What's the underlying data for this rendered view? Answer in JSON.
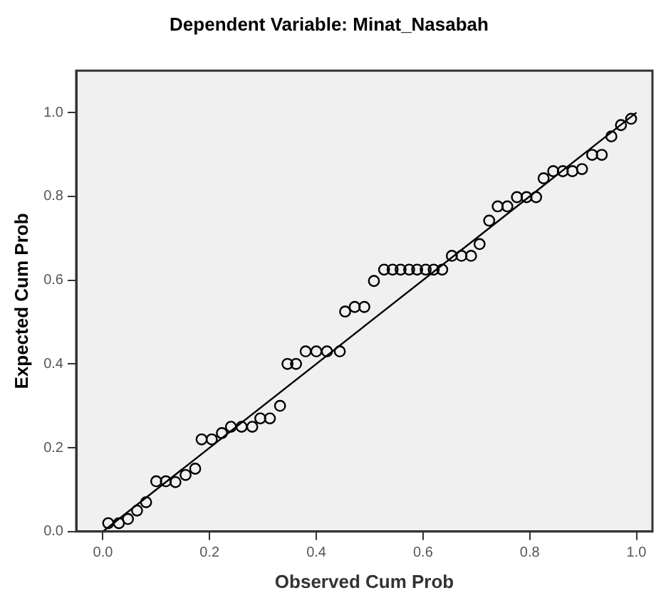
{
  "chart_data": {
    "type": "scatter",
    "title": "Dependent Variable: Minat_Nasabah",
    "xlabel": "Observed Cum Prob",
    "ylabel": "Expected Cum Prob",
    "xlim": [
      -0.05,
      1.03
    ],
    "ylim": [
      0,
      1.1
    ],
    "xticks": [
      {
        "value": 0,
        "label": "0.0"
      },
      {
        "value": 0.2,
        "label": "0.2"
      },
      {
        "value": 0.4,
        "label": "0.4"
      },
      {
        "value": 0.6,
        "label": "0.6"
      },
      {
        "value": 0.8,
        "label": "0.8"
      },
      {
        "value": 1,
        "label": "1.0"
      }
    ],
    "yticks": [
      {
        "value": 0,
        "label": "0.0"
      },
      {
        "value": 0.2,
        "label": "0.2"
      },
      {
        "value": 0.4,
        "label": "0.4"
      },
      {
        "value": 0.6,
        "label": "0.6"
      },
      {
        "value": 0.8,
        "label": "0.8"
      },
      {
        "value": 1,
        "label": "1.0"
      }
    ],
    "grid": false,
    "legend": false,
    "series": [
      {
        "type": "scatter",
        "color": "#000000",
        "marker": "circle",
        "x": [
          0.01,
          0.03,
          0.047,
          0.064,
          0.081,
          0.1,
          0.118,
          0.136,
          0.155,
          0.173,
          0.185,
          0.204,
          0.223,
          0.24,
          0.26,
          0.28,
          0.295,
          0.313,
          0.332,
          0.346,
          0.362,
          0.38,
          0.4,
          0.42,
          0.444,
          0.454,
          0.472,
          0.49,
          0.508,
          0.527,
          0.543,
          0.558,
          0.574,
          0.589,
          0.605,
          0.62,
          0.636,
          0.654,
          0.672,
          0.69,
          0.706,
          0.724,
          0.74,
          0.758,
          0.776,
          0.794,
          0.812,
          0.826,
          0.844,
          0.862,
          0.88,
          0.898,
          0.917,
          0.935,
          0.953,
          0.971,
          0.99
        ],
        "values": [
          0.02,
          0.02,
          0.03,
          0.05,
          0.07,
          0.12,
          0.12,
          0.118,
          0.135,
          0.15,
          0.22,
          0.22,
          0.235,
          0.25,
          0.25,
          0.25,
          0.27,
          0.27,
          0.3,
          0.4,
          0.4,
          0.43,
          0.43,
          0.43,
          0.43,
          0.525,
          0.536,
          0.536,
          0.598,
          0.625,
          0.625,
          0.625,
          0.625,
          0.625,
          0.625,
          0.625,
          0.625,
          0.658,
          0.658,
          0.658,
          0.686,
          0.742,
          0.776,
          0.776,
          0.798,
          0.798,
          0.798,
          0.843,
          0.86,
          0.86,
          0.86,
          0.865,
          0.899,
          0.899,
          0.943,
          0.97,
          0.985
        ]
      },
      {
        "type": "line",
        "color": "#000000",
        "marker": "none",
        "line_style": "solid",
        "x": [
          0,
          1
        ],
        "values": [
          0,
          1
        ]
      }
    ]
  }
}
